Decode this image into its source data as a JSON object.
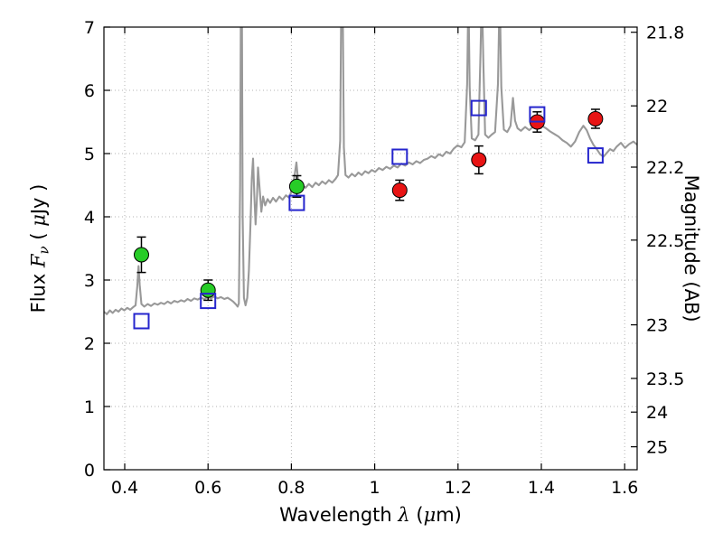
{
  "labels": {
    "xlabel": {
      "p1": "Wavelength  ",
      "p2": "λ",
      "p3": " (",
      "p4": "μ",
      "p5": "m)"
    },
    "ylabel_left": {
      "p1": "Flux  ",
      "p2": "F",
      "p3": "ν",
      "p4": "  ( ",
      "p5": "μ",
      "p6": "Jy )"
    },
    "ylabel_right": "Magnitude (AB)"
  },
  "chart_data": {
    "type": "line+scatter",
    "title": "",
    "xlabel": "Wavelength λ (μm)",
    "ylabel_left": "Flux Fν (μJy)",
    "ylabel_right": "Magnitude (AB)",
    "xlim": [
      0.35,
      1.63
    ],
    "ylim": [
      0,
      7
    ],
    "grid": "dotted",
    "grid_color": "#b3b3b3",
    "x_ticks": [
      0.4,
      0.6,
      0.8,
      1.0,
      1.2,
      1.4,
      1.6
    ],
    "x_tick_labels": [
      "0.4",
      "0.6",
      "0.8",
      "1",
      "1.2",
      "1.4",
      "1.6"
    ],
    "y_ticks_left": [
      0,
      1,
      2,
      3,
      4,
      5,
      6,
      7
    ],
    "y_tick_labels_left": [
      "0",
      "1",
      "2",
      "3",
      "4",
      "5",
      "6",
      "7"
    ],
    "y_ticks_right": [
      {
        "label": "21.8",
        "flux": 6.918
      },
      {
        "label": "22",
        "flux": 5.754
      },
      {
        "label": "22.2",
        "flux": 4.786
      },
      {
        "label": "22.5",
        "flux": 3.631
      },
      {
        "label": "23",
        "flux": 2.291
      },
      {
        "label": "23.5",
        "flux": 1.445
      },
      {
        "label": "24",
        "flux": 0.912
      },
      {
        "label": "25",
        "flux": 0.363
      }
    ],
    "series": [
      {
        "name": "model-spectrum",
        "type": "line",
        "color": "#999999",
        "width": 2.1,
        "points": [
          [
            0.35,
            2.5
          ],
          [
            0.357,
            2.46
          ],
          [
            0.364,
            2.52
          ],
          [
            0.371,
            2.48
          ],
          [
            0.378,
            2.53
          ],
          [
            0.385,
            2.5
          ],
          [
            0.392,
            2.55
          ],
          [
            0.399,
            2.52
          ],
          [
            0.406,
            2.56
          ],
          [
            0.413,
            2.53
          ],
          [
            0.42,
            2.57
          ],
          [
            0.426,
            2.6
          ],
          [
            0.43,
            2.9
          ],
          [
            0.433,
            3.22
          ],
          [
            0.436,
            2.92
          ],
          [
            0.44,
            2.62
          ],
          [
            0.447,
            2.58
          ],
          [
            0.455,
            2.62
          ],
          [
            0.463,
            2.59
          ],
          [
            0.471,
            2.63
          ],
          [
            0.479,
            2.61
          ],
          [
            0.487,
            2.64
          ],
          [
            0.495,
            2.62
          ],
          [
            0.503,
            2.66
          ],
          [
            0.511,
            2.63
          ],
          [
            0.519,
            2.67
          ],
          [
            0.527,
            2.65
          ],
          [
            0.535,
            2.68
          ],
          [
            0.543,
            2.66
          ],
          [
            0.551,
            2.7
          ],
          [
            0.559,
            2.67
          ],
          [
            0.567,
            2.71
          ],
          [
            0.575,
            2.69
          ],
          [
            0.583,
            2.72
          ],
          [
            0.591,
            2.7
          ],
          [
            0.599,
            2.73
          ],
          [
            0.607,
            2.71
          ],
          [
            0.615,
            2.74
          ],
          [
            0.623,
            2.71
          ],
          [
            0.631,
            2.73
          ],
          [
            0.639,
            2.7
          ],
          [
            0.647,
            2.72
          ],
          [
            0.654,
            2.69
          ],
          [
            0.66,
            2.66
          ],
          [
            0.666,
            2.62
          ],
          [
            0.671,
            2.58
          ],
          [
            0.674,
            2.63
          ],
          [
            0.677,
            4.5
          ],
          [
            0.679,
            7.6
          ],
          [
            0.681,
            7.6
          ],
          [
            0.683,
            4.0
          ],
          [
            0.686,
            2.72
          ],
          [
            0.69,
            2.6
          ],
          [
            0.694,
            2.72
          ],
          [
            0.698,
            3.15
          ],
          [
            0.702,
            3.95
          ],
          [
            0.705,
            4.6
          ],
          [
            0.708,
            4.92
          ],
          [
            0.711,
            4.35
          ],
          [
            0.714,
            3.88
          ],
          [
            0.717,
            4.25
          ],
          [
            0.72,
            4.78
          ],
          [
            0.724,
            4.42
          ],
          [
            0.728,
            4.08
          ],
          [
            0.732,
            4.32
          ],
          [
            0.737,
            4.18
          ],
          [
            0.743,
            4.28
          ],
          [
            0.749,
            4.22
          ],
          [
            0.756,
            4.3
          ],
          [
            0.763,
            4.24
          ],
          [
            0.771,
            4.32
          ],
          [
            0.779,
            4.27
          ],
          [
            0.787,
            4.34
          ],
          [
            0.795,
            4.3
          ],
          [
            0.801,
            4.44
          ],
          [
            0.807,
            4.62
          ],
          [
            0.812,
            4.86
          ],
          [
            0.816,
            4.58
          ],
          [
            0.821,
            4.42
          ],
          [
            0.827,
            4.5
          ],
          [
            0.834,
            4.46
          ],
          [
            0.842,
            4.52
          ],
          [
            0.85,
            4.47
          ],
          [
            0.858,
            4.54
          ],
          [
            0.866,
            4.5
          ],
          [
            0.874,
            4.56
          ],
          [
            0.882,
            4.52
          ],
          [
            0.89,
            4.58
          ],
          [
            0.898,
            4.54
          ],
          [
            0.906,
            4.6
          ],
          [
            0.912,
            4.66
          ],
          [
            0.917,
            5.2
          ],
          [
            0.92,
            7.6
          ],
          [
            0.923,
            7.6
          ],
          [
            0.926,
            5.1
          ],
          [
            0.93,
            4.66
          ],
          [
            0.937,
            4.62
          ],
          [
            0.945,
            4.68
          ],
          [
            0.953,
            4.64
          ],
          [
            0.961,
            4.7
          ],
          [
            0.969,
            4.66
          ],
          [
            0.977,
            4.72
          ],
          [
            0.985,
            4.69
          ],
          [
            0.993,
            4.74
          ],
          [
            1.001,
            4.71
          ],
          [
            1.01,
            4.77
          ],
          [
            1.019,
            4.74
          ],
          [
            1.028,
            4.79
          ],
          [
            1.037,
            4.76
          ],
          [
            1.046,
            4.81
          ],
          [
            1.055,
            4.78
          ],
          [
            1.064,
            4.84
          ],
          [
            1.073,
            4.81
          ],
          [
            1.082,
            4.86
          ],
          [
            1.091,
            4.83
          ],
          [
            1.1,
            4.88
          ],
          [
            1.109,
            4.85
          ],
          [
            1.118,
            4.9
          ],
          [
            1.127,
            4.92
          ],
          [
            1.136,
            4.96
          ],
          [
            1.145,
            4.93
          ],
          [
            1.154,
            4.99
          ],
          [
            1.163,
            4.96
          ],
          [
            1.172,
            5.03
          ],
          [
            1.181,
            5.0
          ],
          [
            1.19,
            5.08
          ],
          [
            1.199,
            5.13
          ],
          [
            1.208,
            5.1
          ],
          [
            1.216,
            5.18
          ],
          [
            1.222,
            6.1
          ],
          [
            1.225,
            7.6
          ],
          [
            1.228,
            6.05
          ],
          [
            1.233,
            5.24
          ],
          [
            1.241,
            5.21
          ],
          [
            1.249,
            5.3
          ],
          [
            1.254,
            6.6
          ],
          [
            1.257,
            7.6
          ],
          [
            1.261,
            6.4
          ],
          [
            1.265,
            5.3
          ],
          [
            1.273,
            5.25
          ],
          [
            1.281,
            5.3
          ],
          [
            1.289,
            5.34
          ],
          [
            1.296,
            6.1
          ],
          [
            1.3,
            7.6
          ],
          [
            1.304,
            6.05
          ],
          [
            1.31,
            5.38
          ],
          [
            1.318,
            5.34
          ],
          [
            1.326,
            5.44
          ],
          [
            1.332,
            5.88
          ],
          [
            1.337,
            5.52
          ],
          [
            1.343,
            5.4
          ],
          [
            1.351,
            5.36
          ],
          [
            1.361,
            5.42
          ],
          [
            1.371,
            5.37
          ],
          [
            1.381,
            5.43
          ],
          [
            1.391,
            5.39
          ],
          [
            1.401,
            5.44
          ],
          [
            1.411,
            5.4
          ],
          [
            1.421,
            5.35
          ],
          [
            1.431,
            5.31
          ],
          [
            1.441,
            5.27
          ],
          [
            1.451,
            5.21
          ],
          [
            1.461,
            5.17
          ],
          [
            1.471,
            5.11
          ],
          [
            1.481,
            5.19
          ],
          [
            1.491,
            5.34
          ],
          [
            1.501,
            5.44
          ],
          [
            1.509,
            5.37
          ],
          [
            1.517,
            5.24
          ],
          [
            1.525,
            5.14
          ],
          [
            1.533,
            5.07
          ],
          [
            1.541,
            4.99
          ],
          [
            1.549,
            4.95
          ],
          [
            1.557,
            5.01
          ],
          [
            1.565,
            5.07
          ],
          [
            1.573,
            5.04
          ],
          [
            1.581,
            5.11
          ],
          [
            1.591,
            5.17
          ],
          [
            1.601,
            5.09
          ],
          [
            1.611,
            5.15
          ],
          [
            1.621,
            5.19
          ],
          [
            1.63,
            5.14
          ]
        ]
      },
      {
        "name": "green-photometry",
        "type": "scatter",
        "marker": "circle",
        "color": "#27cc27",
        "edge": "#000000",
        "points": [
          {
            "x": 0.44,
            "y": 3.4,
            "yerr": 0.28
          },
          {
            "x": 0.6,
            "y": 2.84,
            "yerr": 0.16
          },
          {
            "x": 0.813,
            "y": 4.48,
            "yerr": 0.17
          }
        ]
      },
      {
        "name": "red-photometry",
        "type": "scatter",
        "marker": "circle",
        "color": "#e81414",
        "edge": "#000000",
        "points": [
          {
            "x": 1.06,
            "y": 4.42,
            "yerr": 0.16
          },
          {
            "x": 1.25,
            "y": 4.9,
            "yerr": 0.22
          },
          {
            "x": 1.39,
            "y": 5.5,
            "yerr": 0.16
          },
          {
            "x": 1.53,
            "y": 5.55,
            "yerr": 0.15
          }
        ]
      },
      {
        "name": "blue-model-photometry",
        "type": "scatter",
        "marker": "square-open",
        "color": "#2525cd",
        "edge": "#2525cd",
        "points": [
          {
            "x": 0.44,
            "y": 2.35
          },
          {
            "x": 0.6,
            "y": 2.67
          },
          {
            "x": 0.813,
            "y": 4.22
          },
          {
            "x": 1.06,
            "y": 4.95
          },
          {
            "x": 1.25,
            "y": 5.72
          },
          {
            "x": 1.39,
            "y": 5.62
          },
          {
            "x": 1.53,
            "y": 4.97
          }
        ]
      }
    ]
  }
}
